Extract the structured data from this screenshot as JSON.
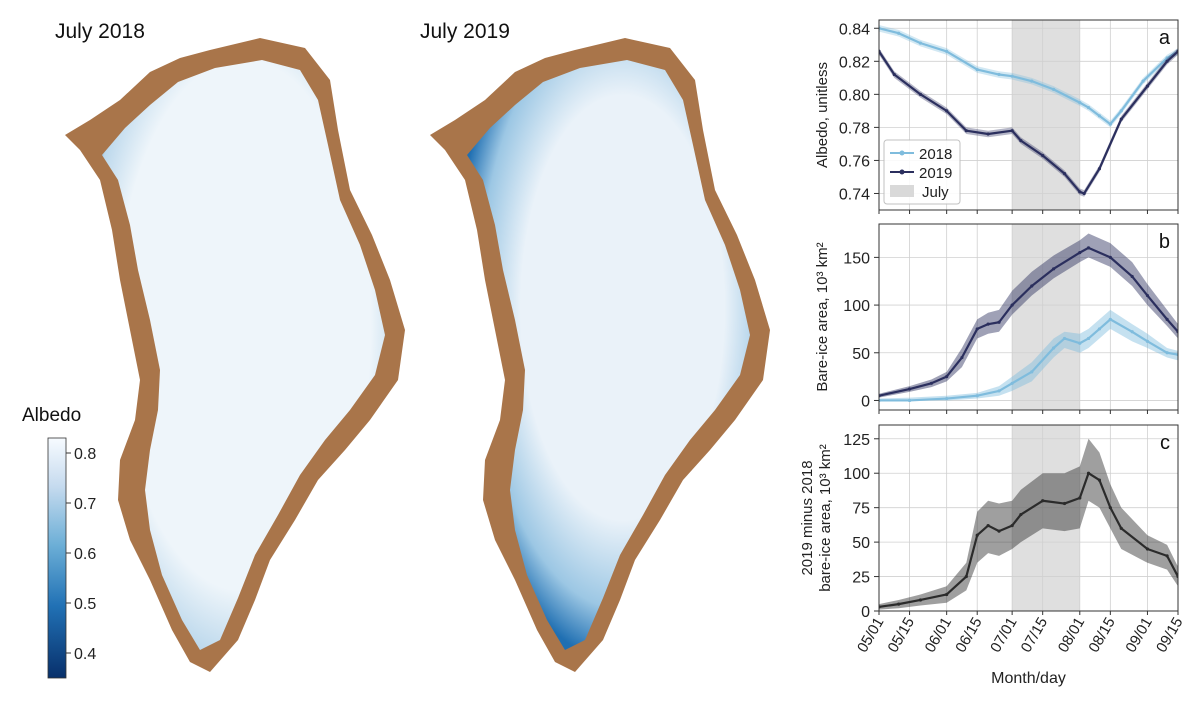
{
  "maps": {
    "left_title": "July 2018",
    "right_title": "July 2019",
    "ice_color": "#eaf2f8",
    "coast_ice_color": "#3d8cc6",
    "land_color": "#a9754a"
  },
  "colorbar": {
    "title": "Albedo",
    "ticks": [
      "0.8",
      "0.7",
      "0.6",
      "0.5",
      "0.4"
    ],
    "tick_values": [
      0.8,
      0.7,
      0.6,
      0.5,
      0.4
    ],
    "range": [
      0.35,
      0.83
    ],
    "color_low": "#08306b",
    "color_mid": "#4292c6",
    "color_high": "#f7fbff"
  },
  "xaxis": {
    "label": "Month/day",
    "ticks": [
      "05/01",
      "05/15",
      "06/01",
      "06/15",
      "07/01",
      "07/15",
      "08/01",
      "08/15",
      "09/01",
      "09/15"
    ],
    "tick_days": [
      0,
      14,
      31,
      45,
      61,
      75,
      92,
      106,
      123,
      137
    ],
    "range_days": [
      0,
      137
    ],
    "july_span_days": [
      61,
      92
    ]
  },
  "chart_data": [
    {
      "type": "line",
      "panel_letter": "a",
      "ylabel": "Albedo, unitless",
      "ylim": [
        0.73,
        0.845
      ],
      "yticks": [
        "0.74",
        "0.76",
        "0.78",
        "0.80",
        "0.82",
        "0.84"
      ],
      "ytick_values": [
        0.74,
        0.76,
        0.78,
        0.8,
        0.82,
        0.84
      ],
      "legend": {
        "entries": [
          "2018",
          "2019",
          "July"
        ],
        "placement": "middle-left"
      },
      "series": [
        {
          "name": "2018",
          "color": "#7fbcdd",
          "x": [
            "05/01",
            "05/10",
            "05/20",
            "06/01",
            "06/15",
            "06/25",
            "07/01",
            "07/10",
            "07/20",
            "08/01",
            "08/05",
            "08/10",
            "08/15",
            "08/20",
            "08/30",
            "09/10",
            "09/15"
          ],
          "values": [
            0.84,
            0.837,
            0.831,
            0.826,
            0.815,
            0.812,
            0.811,
            0.808,
            0.803,
            0.795,
            0.792,
            0.787,
            0.782,
            0.79,
            0.808,
            0.822,
            0.826
          ],
          "band": 0.002
        },
        {
          "name": "2019",
          "color": "#2b2f5e",
          "x": [
            "05/01",
            "05/08",
            "05/20",
            "06/01",
            "06/10",
            "06/20",
            "07/01",
            "07/05",
            "07/15",
            "07/25",
            "08/01",
            "08/03",
            "08/10",
            "08/20",
            "09/01",
            "09/10",
            "09/15"
          ],
          "values": [
            0.826,
            0.812,
            0.8,
            0.79,
            0.778,
            0.776,
            0.778,
            0.772,
            0.763,
            0.752,
            0.741,
            0.74,
            0.755,
            0.785,
            0.805,
            0.82,
            0.826
          ],
          "band": 0.002
        }
      ]
    },
    {
      "type": "line",
      "panel_letter": "b",
      "ylabel": "Bare-ice area, 10³ km²",
      "ylim": [
        -10,
        185
      ],
      "yticks": [
        "0",
        "50",
        "100",
        "150"
      ],
      "ytick_values": [
        0,
        50,
        100,
        150
      ],
      "series": [
        {
          "name": "2018",
          "color": "#7fbcdd",
          "x": [
            "05/01",
            "05/15",
            "06/01",
            "06/15",
            "06/25",
            "07/01",
            "07/10",
            "07/20",
            "07/25",
            "08/01",
            "08/05",
            "08/10",
            "08/15",
            "08/25",
            "09/01",
            "09/10",
            "09/15"
          ],
          "values": [
            0,
            0,
            2,
            5,
            10,
            18,
            30,
            55,
            65,
            60,
            65,
            75,
            85,
            72,
            62,
            50,
            48
          ],
          "band_lower": [
            0,
            0,
            0,
            2,
            5,
            10,
            20,
            45,
            55,
            50,
            55,
            65,
            75,
            62,
            55,
            45,
            42
          ],
          "band_upper": [
            2,
            3,
            5,
            8,
            15,
            25,
            40,
            65,
            72,
            70,
            75,
            85,
            95,
            80,
            70,
            55,
            52
          ]
        },
        {
          "name": "2019",
          "color": "#2b2f5e",
          "x": [
            "05/01",
            "05/15",
            "05/25",
            "06/01",
            "06/08",
            "06/15",
            "06/20",
            "06/25",
            "07/01",
            "07/10",
            "07/20",
            "08/01",
            "08/05",
            "08/15",
            "08/25",
            "09/01",
            "09/10",
            "09/15"
          ],
          "values": [
            5,
            12,
            18,
            25,
            45,
            75,
            80,
            82,
            100,
            120,
            138,
            155,
            160,
            150,
            130,
            110,
            85,
            72
          ],
          "band_lower": [
            3,
            9,
            14,
            20,
            35,
            65,
            70,
            72,
            90,
            110,
            128,
            145,
            150,
            140,
            120,
            100,
            78,
            65
          ],
          "band_upper": [
            7,
            15,
            22,
            30,
            55,
            85,
            92,
            95,
            115,
            135,
            152,
            168,
            175,
            165,
            145,
            122,
            95,
            80
          ]
        }
      ]
    },
    {
      "type": "line",
      "panel_letter": "c",
      "ylabel": "2019 minus 2018 bare-ice area, 10³ km²",
      "ylabel_line1": "2019 minus 2018",
      "ylabel_line2": "bare-ice area, 10³ km²",
      "ylim": [
        0,
        135
      ],
      "yticks": [
        "0",
        "25",
        "50",
        "75",
        "100",
        "125"
      ],
      "ytick_values": [
        0,
        25,
        50,
        75,
        100,
        125
      ],
      "series": [
        {
          "name": "2019 minus 2018",
          "color": "#2b2b2b",
          "x": [
            "05/01",
            "05/10",
            "05/20",
            "06/01",
            "06/10",
            "06/15",
            "06/20",
            "06/25",
            "07/01",
            "07/05",
            "07/15",
            "07/25",
            "08/01",
            "08/05",
            "08/10",
            "08/15",
            "08/20",
            "09/01",
            "09/10",
            "09/15"
          ],
          "values": [
            3,
            5,
            8,
            12,
            25,
            55,
            62,
            58,
            62,
            70,
            80,
            78,
            82,
            100,
            95,
            75,
            60,
            45,
            40,
            25
          ],
          "band_lower": [
            1,
            2,
            4,
            6,
            15,
            35,
            42,
            40,
            45,
            50,
            60,
            58,
            60,
            80,
            75,
            60,
            45,
            35,
            30,
            18
          ],
          "band_upper": [
            5,
            8,
            12,
            18,
            35,
            72,
            80,
            78,
            80,
            88,
            100,
            100,
            105,
            125,
            115,
            92,
            75,
            55,
            48,
            32
          ]
        }
      ]
    }
  ]
}
